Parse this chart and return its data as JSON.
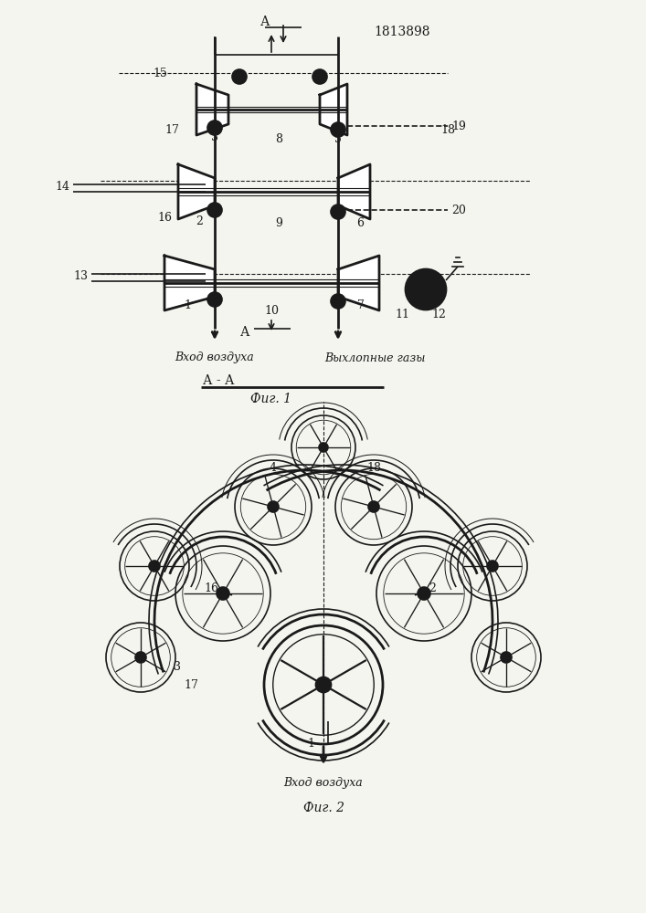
{
  "patent_number": "1813898",
  "fig1_title": "Фиг. 1",
  "fig2_title": "Фиг. 2",
  "section_label": "А - А",
  "vhod_vozdukha": "Вход воздуха",
  "vykhlopnye_gazy": "Выхлопные газы",
  "line_color": "#1a1a1a",
  "bg_color": "#f5f5f0",
  "lw": 1.2,
  "lw_thick": 2.0,
  "lw_thin": 0.8
}
